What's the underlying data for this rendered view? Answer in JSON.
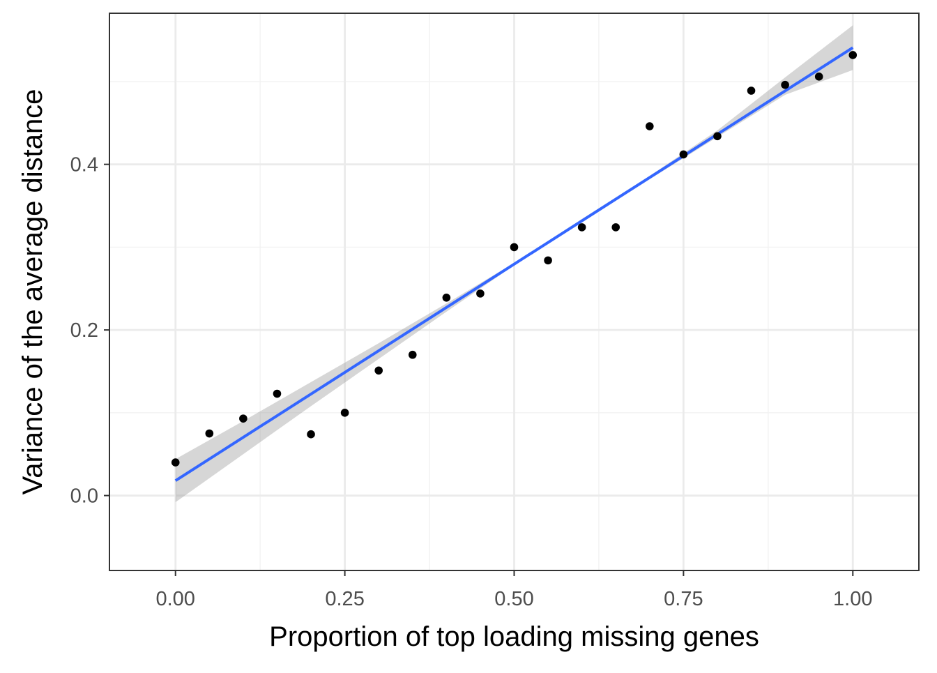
{
  "chart_data": {
    "type": "scatter",
    "title": "",
    "xlabel": "Proportion of top loading missing genes",
    "ylabel": "Variance of the average distance",
    "xlim": [
      -0.0975,
      1.0975
    ],
    "ylim": [
      -0.0905,
      0.5825
    ],
    "x_ticks": [
      0.0,
      0.25,
      0.5,
      0.75,
      1.0
    ],
    "x_tick_labels": [
      "0.00",
      "0.25",
      "0.50",
      "0.75",
      "1.00"
    ],
    "y_ticks": [
      0.0,
      0.2,
      0.4
    ],
    "y_tick_labels": [
      "0.0",
      "0.2",
      "0.4"
    ],
    "grid": true,
    "legend": "none",
    "series": [
      {
        "type": "scatter",
        "color": "#000000",
        "points": [
          {
            "x": 0.0,
            "y": 0.04
          },
          {
            "x": 0.05,
            "y": 0.075
          },
          {
            "x": 0.1,
            "y": 0.093
          },
          {
            "x": 0.15,
            "y": 0.123
          },
          {
            "x": 0.2,
            "y": 0.074
          },
          {
            "x": 0.25,
            "y": 0.1
          },
          {
            "x": 0.3,
            "y": 0.151
          },
          {
            "x": 0.35,
            "y": 0.17
          },
          {
            "x": 0.4,
            "y": 0.239
          },
          {
            "x": 0.45,
            "y": 0.244
          },
          {
            "x": 0.5,
            "y": 0.3
          },
          {
            "x": 0.55,
            "y": 0.284
          },
          {
            "x": 0.6,
            "y": 0.324
          },
          {
            "x": 0.65,
            "y": 0.324
          },
          {
            "x": 0.7,
            "y": 0.446
          },
          {
            "x": 0.75,
            "y": 0.412
          },
          {
            "x": 0.8,
            "y": 0.434
          },
          {
            "x": 0.85,
            "y": 0.489
          },
          {
            "x": 0.9,
            "y": 0.496
          },
          {
            "x": 0.95,
            "y": 0.506
          },
          {
            "x": 1.0,
            "y": 0.532
          }
        ]
      },
      {
        "type": "line",
        "method": "linear fit",
        "color": "#3366FF",
        "x": [
          0.0,
          1.0
        ],
        "y": [
          0.018,
          0.541
        ]
      },
      {
        "type": "band",
        "color": "#999999",
        "opacity": 0.4,
        "x": [
          0.0,
          0.1,
          0.2,
          0.3,
          0.4,
          0.5,
          0.6,
          0.7,
          0.8,
          0.9,
          1.0
        ],
        "lower": [
          -0.008,
          0.05,
          0.108,
          0.165,
          0.222,
          0.278,
          0.33,
          0.382,
          0.433,
          0.484,
          0.514
        ],
        "upper": [
          0.044,
          0.09,
          0.137,
          0.184,
          0.232,
          0.281,
          0.334,
          0.386,
          0.441,
          0.505,
          0.568
        ]
      }
    ]
  },
  "colors": {
    "background": "#ffffff",
    "panel_border": "#333333",
    "grid_major": "#ebebeb",
    "grid_minor": "#f2f2f2",
    "tick_label": "#4d4d4d",
    "axis_title": "#000000"
  }
}
